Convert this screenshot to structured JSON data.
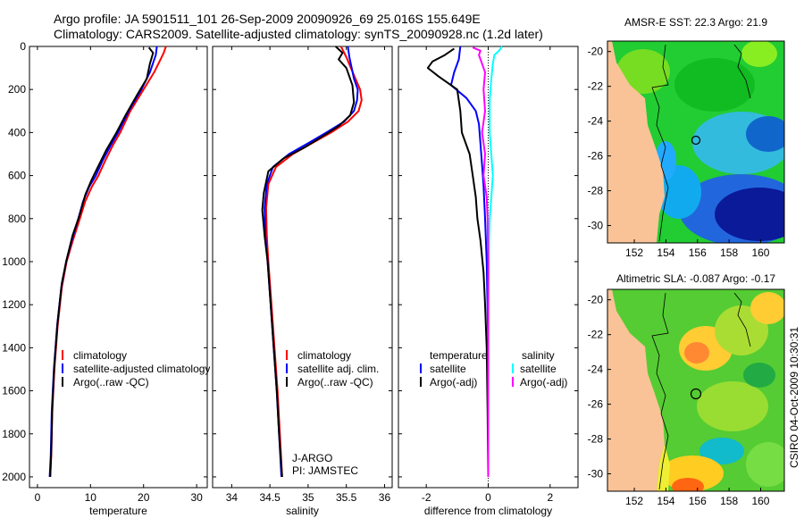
{
  "title_line1": "Argo profile: JA 5901511_101 26-Sep-2009 20090926_69 25.016S 155.649E",
  "title_line2": "Climatology: CARS2009. Satellite-adjusted climatology: synTS_20090928.nc (1.2d later)",
  "side_label": "CSIRO 04-Oct-2009 10:30:31",
  "colors": {
    "red": "#ff0000",
    "blue": "#0000ff",
    "black": "#000000",
    "cyan": "#00ffff",
    "magenta": "#ff00ff"
  },
  "chart_data": [
    {
      "type": "line",
      "xlabel": "temperature",
      "xlim": [
        -1.5,
        32
      ],
      "ylim": [
        2050,
        0
      ],
      "y_reversed": true,
      "x_ticks": [
        0,
        10,
        20,
        30
      ],
      "y_ticks": [
        0,
        200,
        400,
        600,
        800,
        1000,
        1200,
        1400,
        1600,
        1800,
        2000
      ],
      "legend": [
        "climatology",
        "satellite-adjusted climatology",
        "Argo(..raw -QC)"
      ],
      "series": [
        {
          "color": "red",
          "x": [
            24.2,
            23.8,
            22.0,
            20.0,
            17.5,
            15.6,
            14.2,
            12.8,
            11.5,
            10.3,
            9.0,
            8.0,
            6.7,
            5.5,
            4.6,
            3.8,
            3.2,
            2.8,
            2.6,
            2.4
          ],
          "y": [
            0,
            30,
            120,
            200,
            300,
            400,
            460,
            530,
            600,
            650,
            720,
            800,
            900,
            1000,
            1120,
            1300,
            1500,
            1700,
            1900,
            2000
          ]
        },
        {
          "color": "blue",
          "x": [
            22.5,
            22.3,
            21.2,
            19.6,
            17.2,
            15.2,
            13.8,
            12.3,
            11.0,
            9.8,
            8.6,
            7.7,
            6.5,
            5.4,
            4.5,
            3.7,
            3.1,
            2.7,
            2.5,
            2.3
          ],
          "y": [
            0,
            40,
            120,
            200,
            300,
            400,
            460,
            530,
            600,
            650,
            720,
            800,
            900,
            1000,
            1120,
            1300,
            1500,
            1700,
            1900,
            2000
          ]
        },
        {
          "color": "black",
          "x": [
            21.0,
            21.8,
            21.2,
            20.6,
            18.9,
            16.6,
            14.9,
            13.0,
            11.4,
            10.2,
            9.0,
            8.0,
            6.6,
            5.5,
            4.6,
            3.8,
            3.2,
            2.8,
            2.6,
            2.4
          ],
          "y": [
            5,
            30,
            80,
            150,
            220,
            320,
            400,
            480,
            560,
            620,
            690,
            780,
            880,
            990,
            1100,
            1280,
            1480,
            1680,
            1880,
            2000
          ]
        }
      ]
    },
    {
      "type": "line",
      "xlabel": "salinity",
      "xlim": [
        33.75,
        36.1
      ],
      "ylim": [
        2050,
        0
      ],
      "y_reversed": true,
      "x_ticks": [
        34,
        34.5,
        35,
        35.5,
        36
      ],
      "legend": [
        "climatology",
        "satellite adj. clim.",
        "Argo(..raw -QC)"
      ],
      "annotation": [
        "J-ARGO",
        "PI: JAMSTEC"
      ],
      "series": [
        {
          "color": "red",
          "x": [
            35.43,
            35.5,
            35.56,
            35.62,
            35.68,
            35.7,
            35.66,
            35.52,
            35.3,
            35.05,
            34.8,
            34.58,
            34.48,
            34.45,
            34.46,
            34.48,
            34.52,
            34.56,
            34.6,
            34.63,
            34.66
          ],
          "y": [
            0,
            50,
            100,
            150,
            200,
            250,
            300,
            350,
            400,
            450,
            500,
            560,
            640,
            750,
            880,
            1000,
            1200,
            1400,
            1600,
            1800,
            2000
          ]
        },
        {
          "color": "blue",
          "x": [
            35.52,
            35.54,
            35.57,
            35.6,
            35.65,
            35.64,
            35.6,
            35.47,
            35.24,
            35.0,
            34.75,
            34.54,
            34.46,
            34.43,
            34.44,
            34.47,
            34.51,
            34.55,
            34.59,
            34.62,
            34.65
          ],
          "y": [
            0,
            50,
            100,
            150,
            200,
            250,
            300,
            350,
            400,
            450,
            500,
            560,
            640,
            750,
            880,
            1000,
            1200,
            1400,
            1600,
            1800,
            2000
          ]
        },
        {
          "color": "black",
          "x": [
            35.36,
            35.45,
            35.4,
            35.5,
            35.58,
            35.6,
            35.55,
            35.4,
            35.18,
            34.95,
            34.68,
            34.48,
            34.42,
            34.4,
            34.43,
            34.47,
            34.51,
            34.55,
            34.59,
            34.62,
            34.66
          ],
          "y": [
            0,
            30,
            60,
            100,
            180,
            260,
            320,
            370,
            420,
            470,
            520,
            580,
            680,
            760,
            880,
            1000,
            1200,
            1400,
            1600,
            1800,
            2000
          ]
        }
      ]
    },
    {
      "type": "line",
      "xlabel": "difference from climatology",
      "xlim": [
        -2.9,
        2.9
      ],
      "ylim": [
        2050,
        0
      ],
      "y_reversed": true,
      "x_ticks": [
        -2,
        0,
        2
      ],
      "legend_left_header": "temperature",
      "legend_left": [
        "satellite",
        "Argo(-adj)"
      ],
      "legend_right_header": "salinity",
      "legend_right": [
        "satellite",
        "Argo(-adj)"
      ],
      "series": [
        {
          "name": "temperature satellite",
          "color": "blue",
          "x": [
            -0.9,
            -0.95,
            -1.1,
            -1.2,
            -0.7,
            -0.4,
            -0.3,
            -0.25,
            -0.2,
            -0.15,
            -0.1,
            -0.05,
            0,
            0,
            0
          ],
          "y": [
            0,
            60,
            120,
            180,
            240,
            300,
            360,
            450,
            550,
            650,
            800,
            1000,
            1400,
            1800,
            2000
          ]
        },
        {
          "name": "temperature Argo(-adj)",
          "color": "black",
          "x": [
            -1.1,
            -1.4,
            -1.8,
            -1.95,
            -1.6,
            -1.0,
            -0.9,
            -0.85,
            -0.6,
            -0.5,
            -0.4,
            -0.35,
            -0.25,
            -0.15,
            -0.1,
            -0.05,
            -0.02,
            0
          ],
          "y": [
            10,
            40,
            70,
            100,
            140,
            200,
            300,
            400,
            500,
            600,
            700,
            800,
            900,
            1050,
            1200,
            1400,
            1700,
            2000
          ]
        },
        {
          "name": "salinity satellite",
          "color": "cyan",
          "x": [
            0.45,
            0.35,
            0.2,
            0.15,
            0.1,
            0.05,
            0.05,
            0.15,
            0.1,
            0.05,
            0.03,
            0.02,
            0.01,
            0,
            0
          ],
          "y": [
            0,
            20,
            40,
            80,
            150,
            250,
            400,
            600,
            700,
            800,
            900,
            1000,
            1200,
            1600,
            2000
          ]
        },
        {
          "name": "salinity Argo(-adj)",
          "color": "magenta",
          "x": [
            -0.5,
            -0.25,
            -0.3,
            -0.2,
            -0.1,
            -0.15,
            -0.1,
            -0.2,
            -0.1,
            -0.15,
            -0.05,
            -0.02,
            0,
            0
          ],
          "y": [
            5,
            20,
            40,
            80,
            120,
            200,
            300,
            400,
            500,
            600,
            700,
            800,
            1000,
            2000
          ]
        }
      ]
    },
    {
      "type": "heatmap",
      "title": "AMSR-E SST: 22.3 Argo: 21.9",
      "x_ticks": [
        "152",
        "154",
        "156",
        "158",
        "160"
      ],
      "y_ticks": [
        "-20",
        "-22",
        "-24",
        "-26",
        "-28",
        "-30"
      ],
      "xlim": [
        150.3,
        161.5
      ],
      "ylim": [
        -31.0,
        -19.4
      ],
      "float_marker": {
        "lon": 155.649,
        "lat": -25.016
      }
    },
    {
      "type": "heatmap",
      "title": "Altimetric SLA: -0.087 Argo: -0.17",
      "x_ticks": [
        "152",
        "154",
        "156",
        "158",
        "160"
      ],
      "y_ticks": [
        "-20",
        "-22",
        "-24",
        "-26",
        "-28",
        "-30"
      ],
      "xlim": [
        150.3,
        161.5
      ],
      "ylim": [
        -31.0,
        -19.4
      ],
      "float_marker": {
        "lon": 155.649,
        "lat": -25.016
      }
    }
  ]
}
